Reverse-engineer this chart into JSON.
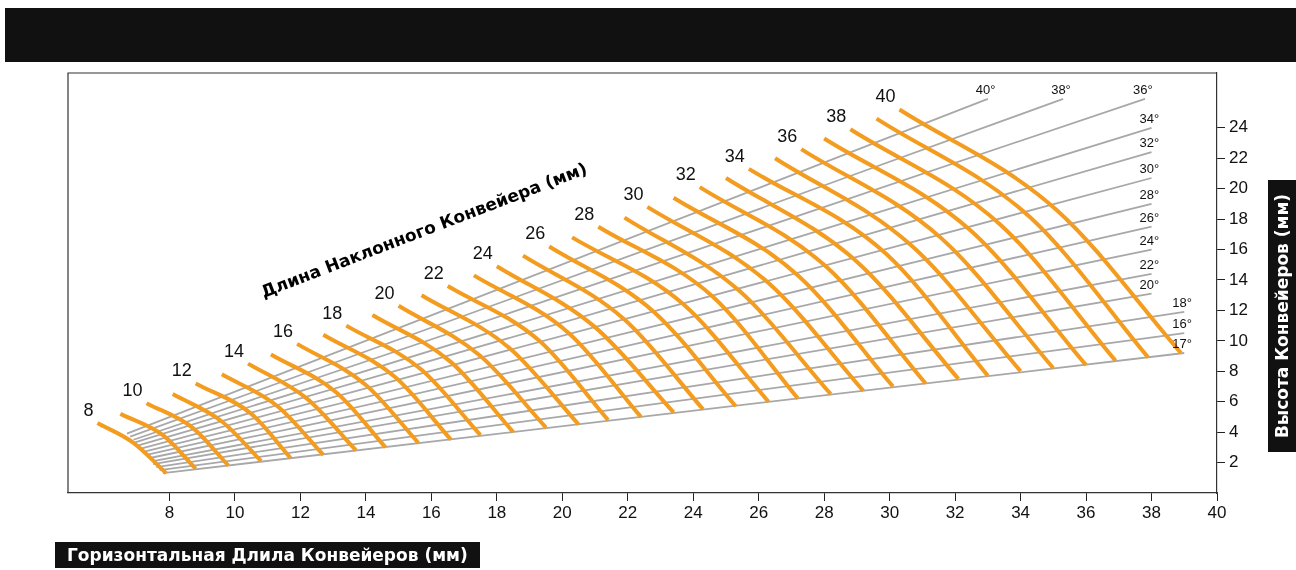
{
  "chart_data": {
    "type": "line",
    "xlabel": "Горизонтальная Длила Конвейеров (мм)",
    "ylabel": "Высота Конвейеров (мм)",
    "annotations": [
      "Длина Наклонного Конвейера (мм)"
    ],
    "xlim": [
      4.9,
      40
    ],
    "xticks": [
      8,
      10,
      12,
      14,
      16,
      18,
      20,
      22,
      24,
      26,
      28,
      30,
      32,
      34,
      36,
      38,
      40
    ],
    "ylim": [
      0,
      27.6
    ],
    "yticks": [
      2,
      4,
      6,
      8,
      10,
      12,
      14,
      16,
      18,
      20,
      22,
      24
    ],
    "marker": "none",
    "legend": false,
    "series": [
      {
        "name": "8",
        "color": "#f39c1f",
        "x": [
          5.8,
          6.9,
          7.9
        ],
        "values": [
          4.6,
          3.3,
          1.3
        ]
      },
      {
        "color": "#f39c1f",
        "x": [
          6.5,
          7.8,
          8.8
        ],
        "values": [
          5.2,
          3.8,
          1.6
        ]
      },
      {
        "name": "10",
        "color": "#f39c1f",
        "x": [
          7.3,
          8.7,
          9.8
        ],
        "values": [
          5.9,
          4.3,
          1.8
        ]
      },
      {
        "color": "#f39c1f",
        "x": [
          8.1,
          9.6,
          10.8
        ],
        "values": [
          6.5,
          4.7,
          2.1
        ]
      },
      {
        "name": "12",
        "color": "#f39c1f",
        "x": [
          8.8,
          10.5,
          11.7
        ],
        "values": [
          7.2,
          5.2,
          2.3
        ]
      },
      {
        "color": "#f39c1f",
        "x": [
          9.6,
          11.3,
          12.7
        ],
        "values": [
          7.8,
          5.7,
          2.5
        ]
      },
      {
        "name": "14",
        "color": "#f39c1f",
        "x": [
          10.4,
          12.2,
          13.7
        ],
        "values": [
          8.5,
          6.2,
          2.8
        ]
      },
      {
        "color": "#f39c1f",
        "x": [
          11.1,
          13.1,
          14.6
        ],
        "values": [
          9.1,
          6.6,
          3.0
        ]
      },
      {
        "name": "16",
        "color": "#f39c1f",
        "x": [
          11.9,
          14.0,
          15.6
        ],
        "values": [
          9.8,
          7.1,
          3.3
        ]
      },
      {
        "color": "#f39c1f",
        "x": [
          12.7,
          14.9,
          16.6
        ],
        "values": [
          10.4,
          7.6,
          3.5
        ]
      },
      {
        "name": "18",
        "color": "#f39c1f",
        "x": [
          13.4,
          15.7,
          17.5
        ],
        "values": [
          11.0,
          8.1,
          3.8
        ]
      },
      {
        "color": "#f39c1f",
        "x": [
          14.2,
          16.6,
          18.5
        ],
        "values": [
          11.7,
          8.6,
          4.0
        ]
      },
      {
        "name": "20",
        "color": "#f39c1f",
        "x": [
          15.0,
          17.5,
          19.5
        ],
        "values": [
          12.3,
          9.0,
          4.3
        ]
      },
      {
        "color": "#f39c1f",
        "x": [
          15.7,
          18.4,
          20.5
        ],
        "values": [
          13.0,
          9.5,
          4.5
        ]
      },
      {
        "name": "22",
        "color": "#f39c1f",
        "x": [
          16.5,
          19.3,
          21.4
        ],
        "values": [
          13.6,
          10.0,
          4.8
        ]
      },
      {
        "color": "#f39c1f",
        "x": [
          17.3,
          20.2,
          22.4
        ],
        "values": [
          14.3,
          10.5,
          5.0
        ]
      },
      {
        "name": "24",
        "color": "#f39c1f",
        "x": [
          18.0,
          21.0,
          23.4
        ],
        "values": [
          14.9,
          10.9,
          5.3
        ]
      },
      {
        "color": "#f39c1f",
        "x": [
          18.8,
          21.9,
          24.3
        ],
        "values": [
          15.6,
          11.4,
          5.5
        ]
      },
      {
        "name": "26",
        "color": "#f39c1f",
        "x": [
          19.6,
          22.8,
          25.3
        ],
        "values": [
          16.2,
          11.9,
          5.7
        ]
      },
      {
        "color": "#f39c1f",
        "x": [
          20.3,
          23.7,
          26.3
        ],
        "values": [
          16.8,
          12.4,
          6.0
        ]
      },
      {
        "name": "28",
        "color": "#f39c1f",
        "x": [
          21.1,
          24.6,
          27.2
        ],
        "values": [
          17.5,
          12.9,
          6.2
        ]
      },
      {
        "color": "#f39c1f",
        "x": [
          21.9,
          25.4,
          28.2
        ],
        "values": [
          18.1,
          13.3,
          6.5
        ]
      },
      {
        "name": "30",
        "color": "#f39c1f",
        "x": [
          22.6,
          26.3,
          29.2
        ],
        "values": [
          18.8,
          13.8,
          6.7
        ]
      },
      {
        "color": "#f39c1f",
        "x": [
          23.4,
          27.2,
          30.1
        ],
        "values": [
          19.4,
          14.3,
          7.0
        ]
      },
      {
        "name": "32",
        "color": "#f39c1f",
        "x": [
          24.2,
          28.1,
          31.1
        ],
        "values": [
          20.1,
          14.8,
          7.2
        ]
      },
      {
        "color": "#f39c1f",
        "x": [
          25.0,
          29.0,
          32.1
        ],
        "values": [
          20.7,
          15.2,
          7.5
        ]
      },
      {
        "name": "34",
        "color": "#f39c1f",
        "x": [
          25.7,
          29.9,
          33.0
        ],
        "values": [
          21.3,
          15.7,
          7.7
        ]
      },
      {
        "color": "#f39c1f",
        "x": [
          26.5,
          30.7,
          34.0
        ],
        "values": [
          22.0,
          16.2,
          8.0
        ]
      },
      {
        "name": "36",
        "color": "#f39c1f",
        "x": [
          27.3,
          31.6,
          35.0
        ],
        "values": [
          22.6,
          16.7,
          8.2
        ]
      },
      {
        "color": "#f39c1f",
        "x": [
          28.0,
          32.5,
          36.0
        ],
        "values": [
          23.3,
          17.2,
          8.4
        ]
      },
      {
        "name": "38",
        "color": "#f39c1f",
        "x": [
          28.8,
          33.4,
          36.9
        ],
        "values": [
          23.9,
          17.6,
          8.7
        ]
      },
      {
        "color": "#f39c1f",
        "x": [
          29.6,
          34.3,
          37.9
        ],
        "values": [
          24.6,
          18.1,
          8.9
        ]
      },
      {
        "name": "40",
        "color": "#f39c1f",
        "x": [
          30.3,
          35.1,
          38.9
        ],
        "values": [
          25.2,
          18.6,
          9.2
        ]
      },
      {
        "name": "40°",
        "color": "#a8a8a8",
        "x": [
          6.7,
          33.0
        ],
        "values": [
          3.9,
          25.9
        ]
      },
      {
        "name": "38°",
        "color": "#a8a8a8",
        "x": [
          6.8,
          35.3
        ],
        "values": [
          3.7,
          25.9
        ]
      },
      {
        "name": "36°",
        "color": "#a8a8a8",
        "x": [
          6.9,
          37.8
        ],
        "values": [
          3.5,
          25.9
        ]
      },
      {
        "name": "34°",
        "color": "#a8a8a8",
        "x": [
          6.9,
          38.0
        ],
        "values": [
          3.3,
          24.0
        ]
      },
      {
        "name": "32°",
        "color": "#a8a8a8",
        "x": [
          7.0,
          38.0
        ],
        "values": [
          3.1,
          22.4
        ]
      },
      {
        "name": "30°",
        "color": "#a8a8a8",
        "x": [
          7.1,
          38.0
        ],
        "values": [
          2.9,
          20.7
        ]
      },
      {
        "name": "28°",
        "color": "#a8a8a8",
        "x": [
          7.2,
          38.0
        ],
        "values": [
          2.7,
          19.0
        ]
      },
      {
        "name": "26°",
        "color": "#a8a8a8",
        "x": [
          7.3,
          38.0
        ],
        "values": [
          2.5,
          17.5
        ]
      },
      {
        "name": "24°",
        "color": "#a8a8a8",
        "x": [
          7.4,
          38.0
        ],
        "values": [
          2.3,
          16.0
        ]
      },
      {
        "name": "22°",
        "color": "#a8a8a8",
        "x": [
          7.5,
          38.0
        ],
        "values": [
          2.1,
          14.4
        ]
      },
      {
        "name": "20°",
        "color": "#a8a8a8",
        "x": [
          7.5,
          38.0
        ],
        "values": [
          1.9,
          13.1
        ]
      },
      {
        "name": "18°",
        "color": "#a8a8a8",
        "x": [
          7.6,
          39.0
        ],
        "values": [
          1.7,
          11.9
        ]
      },
      {
        "name": "16°",
        "color": "#a8a8a8",
        "x": [
          7.7,
          39.0
        ],
        "values": [
          1.5,
          10.5
        ]
      },
      {
        "name": "17°",
        "color": "#a8a8a8",
        "x": [
          7.8,
          39.0
        ],
        "values": [
          1.3,
          9.2
        ]
      }
    ]
  }
}
